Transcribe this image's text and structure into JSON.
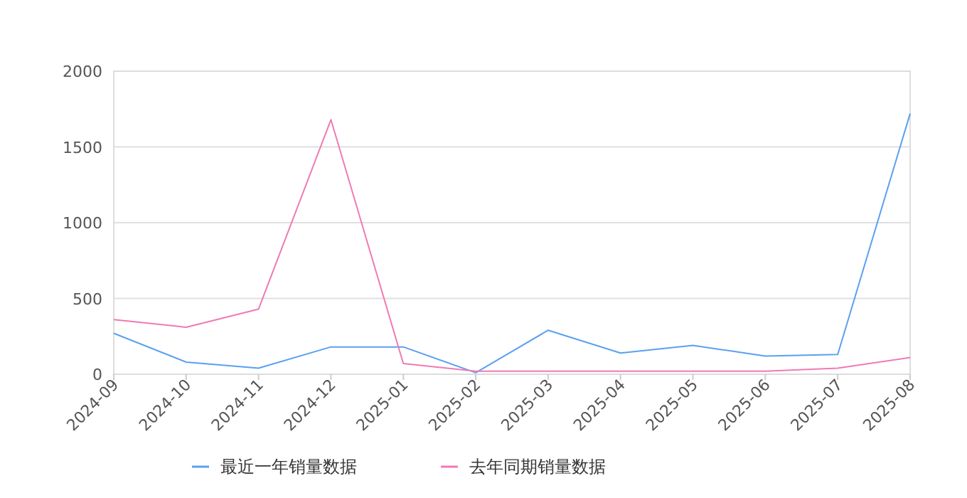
{
  "chart_data": {
    "type": "line",
    "categories": [
      "2024-09",
      "2024-10",
      "2024-11",
      "2024-12",
      "2025-01",
      "2025-02",
      "2025-03",
      "2025-04",
      "2025-05",
      "2025-06",
      "2025-07",
      "2025-08"
    ],
    "series": [
      {
        "name": "最近一年销量数据",
        "color": "#5aa0f0",
        "values": [
          270,
          80,
          40,
          180,
          180,
          10,
          290,
          140,
          190,
          120,
          130,
          1720
        ]
      },
      {
        "name": "去年同期销量数据",
        "color": "#f07ab4",
        "values": [
          360,
          310,
          430,
          1680,
          70,
          20,
          20,
          20,
          20,
          20,
          40,
          110
        ]
      }
    ],
    "ylim": [
      0,
      2000
    ],
    "yticks": [
      0,
      500,
      1000,
      1500,
      2000
    ],
    "grid": "y",
    "legend": "bottom",
    "marker": "none"
  }
}
